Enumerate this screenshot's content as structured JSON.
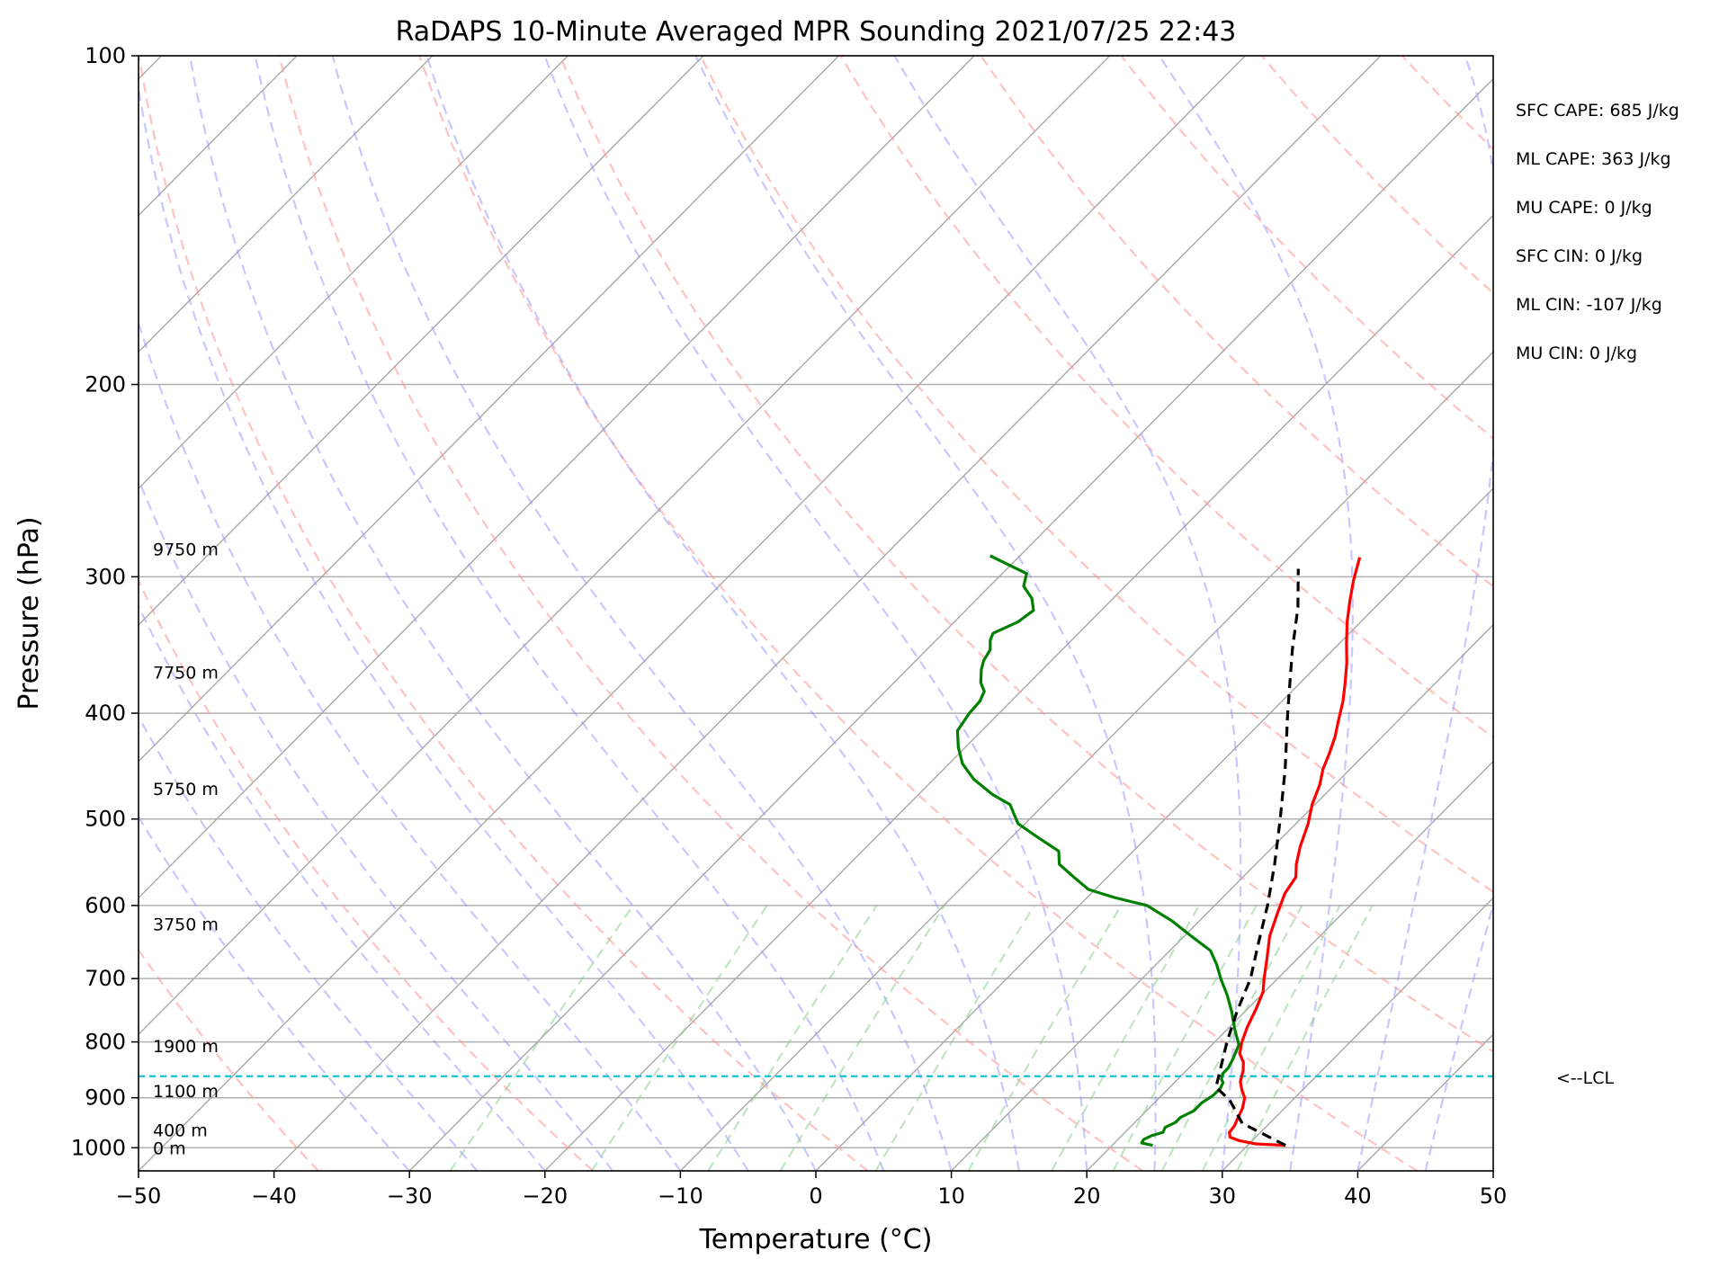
{
  "chart_data": {
    "type": "line",
    "title": "RaDAPS 10-Minute Averaged MPR Sounding 2021/07/25 22:43",
    "xlabel": "Temperature (°C)",
    "ylabel": "Pressure (hPa)",
    "xlim": [
      -50,
      50
    ],
    "ylim": [
      1050,
      100
    ],
    "y_scale": "log",
    "x_ticks": [
      "−50",
      "−40",
      "−30",
      "−20",
      "−10",
      "0",
      "10",
      "20",
      "30",
      "40",
      "50"
    ],
    "y_ticks": [
      {
        "p": 100,
        "label": "100"
      },
      {
        "p": 200,
        "label": "200"
      },
      {
        "p": 300,
        "label": "300"
      },
      {
        "p": 400,
        "label": "400"
      },
      {
        "p": 500,
        "label": "500"
      },
      {
        "p": 600,
        "label": "600"
      },
      {
        "p": 700,
        "label": "700"
      },
      {
        "p": 800,
        "label": "800"
      },
      {
        "p": 900,
        "label": "900"
      },
      {
        "p": 1000,
        "label": "1000"
      }
    ],
    "height_labels": [
      {
        "p": 283,
        "label": "9750 m"
      },
      {
        "p": 367,
        "label": "7750 m"
      },
      {
        "p": 469,
        "label": "5750 m"
      },
      {
        "p": 624,
        "label": "3750 m"
      },
      {
        "p": 807,
        "label": "1900 m"
      },
      {
        "p": 887,
        "label": "1100 m"
      },
      {
        "p": 963,
        "label": "400 m"
      },
      {
        "p": 1000,
        "label": "0 m"
      }
    ],
    "stats": [
      "SFC CAPE: 685 J/kg",
      "ML CAPE: 363 J/kg",
      "MU CAPE: 0 J/kg",
      "SFC CIN: 0 J/kg",
      "ML CIN: -107 J/kg",
      "MU CIN: 0 J/kg"
    ],
    "lcl": {
      "p": 860,
      "label": "<--LCL",
      "color": "#17becf"
    },
    "skew_per_decade_c": 80,
    "series": [
      {
        "key": "temperature",
        "color": "#ff0000",
        "points": [
          [
            32.8,
            995
          ],
          [
            30.5,
            992
          ],
          [
            29.0,
            985
          ],
          [
            28.1,
            978
          ],
          [
            27.7,
            968
          ],
          [
            27.6,
            955
          ],
          [
            27.3,
            940
          ],
          [
            26.9,
            920
          ],
          [
            26.3,
            900
          ],
          [
            25.5,
            885
          ],
          [
            24.8,
            870
          ],
          [
            24.2,
            850
          ],
          [
            23.6,
            835
          ],
          [
            22.7,
            820
          ],
          [
            22.0,
            800
          ],
          [
            21.3,
            775
          ],
          [
            20.6,
            745
          ],
          [
            19.9,
            720
          ],
          [
            19.0,
            700
          ],
          [
            17.7,
            670
          ],
          [
            16.3,
            640
          ],
          [
            15.2,
            610
          ],
          [
            14.3,
            585
          ],
          [
            13.9,
            565
          ],
          [
            13.0,
            550
          ],
          [
            12.0,
            530
          ],
          [
            10.9,
            505
          ],
          [
            9.8,
            485
          ],
          [
            8.9,
            465
          ],
          [
            8.0,
            450
          ],
          [
            7.3,
            435
          ],
          [
            6.5,
            420
          ],
          [
            5.5,
            405
          ],
          [
            4.5,
            390
          ],
          [
            3.3,
            375
          ],
          [
            2.0,
            360
          ],
          [
            0.5,
            345
          ],
          [
            -1.0,
            330
          ],
          [
            -2.4,
            315
          ],
          [
            -3.6,
            302
          ],
          [
            -4.8,
            288
          ]
        ]
      },
      {
        "key": "dewpoint",
        "color": "#008000",
        "points": [
          [
            23.0,
            995
          ],
          [
            22.0,
            990
          ],
          [
            21.9,
            983
          ],
          [
            22.2,
            975
          ],
          [
            22.8,
            968
          ],
          [
            22.6,
            958
          ],
          [
            23.0,
            948
          ],
          [
            23.0,
            938
          ],
          [
            23.5,
            925
          ],
          [
            23.5,
            910
          ],
          [
            23.8,
            895
          ],
          [
            23.8,
            882
          ],
          [
            23.6,
            872
          ],
          [
            23.2,
            865
          ],
          [
            22.9,
            855
          ],
          [
            22.9,
            845
          ],
          [
            22.6,
            830
          ],
          [
            22.0,
            805
          ],
          [
            20.6,
            780
          ],
          [
            19.0,
            750
          ],
          [
            17.5,
            725
          ],
          [
            15.8,
            700
          ],
          [
            14.5,
            680
          ],
          [
            13.0,
            660
          ],
          [
            10.5,
            640
          ],
          [
            8.0,
            620
          ],
          [
            5.0,
            600
          ],
          [
            2.0,
            590
          ],
          [
            -0.5,
            580
          ],
          [
            -2.5,
            565
          ],
          [
            -4.5,
            550
          ],
          [
            -5.5,
            535
          ],
          [
            -8.0,
            520
          ],
          [
            -10.5,
            505
          ],
          [
            -11.5,
            495
          ],
          [
            -12.5,
            485
          ],
          [
            -14.5,
            475
          ],
          [
            -17.0,
            460
          ],
          [
            -19.0,
            445
          ],
          [
            -20.5,
            430
          ],
          [
            -21.8,
            415
          ],
          [
            -22.2,
            400
          ],
          [
            -22.3,
            390
          ],
          [
            -22.7,
            382
          ],
          [
            -23.6,
            375
          ],
          [
            -24.5,
            365
          ],
          [
            -25.0,
            358
          ],
          [
            -25.3,
            350
          ],
          [
            -26.0,
            343
          ],
          [
            -26.3,
            338
          ],
          [
            -25.3,
            330
          ],
          [
            -25.0,
            322
          ],
          [
            -26.0,
            314
          ],
          [
            -27.5,
            306
          ],
          [
            -28.2,
            298
          ],
          [
            -32.2,
            287
          ]
        ]
      },
      {
        "key": "parcel",
        "color": "#000000",
        "dashed": true,
        "points": [
          [
            32.8,
            995
          ],
          [
            28.0,
            950
          ],
          [
            25.4,
            905
          ],
          [
            23.4,
            880
          ],
          [
            22.8,
            860
          ],
          [
            20.9,
            800
          ],
          [
            19.4,
            750
          ],
          [
            18.0,
            700
          ],
          [
            16.0,
            650
          ],
          [
            13.9,
            600
          ],
          [
            11.4,
            550
          ],
          [
            8.5,
            500
          ],
          [
            5.2,
            450
          ],
          [
            1.3,
            400
          ],
          [
            -3.0,
            350
          ],
          [
            -5.7,
            320
          ],
          [
            -8.5,
            295
          ]
        ]
      }
    ]
  }
}
